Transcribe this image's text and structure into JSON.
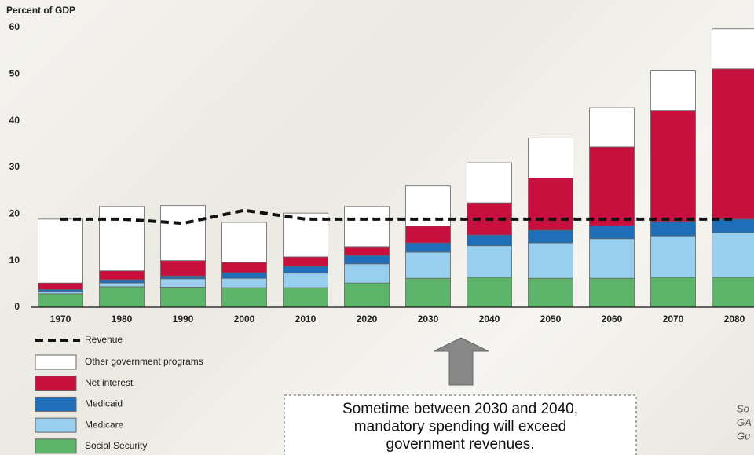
{
  "chart_data": {
    "type": "bar",
    "stacked": true,
    "y_label": "Percent of GDP",
    "categories": [
      "1970",
      "1980",
      "1990",
      "2000",
      "2010",
      "2020",
      "2030",
      "2040",
      "2050",
      "2060",
      "2070",
      "2080"
    ],
    "series": [
      {
        "name": "Social Security",
        "color": "#5cb56a",
        "values": [
          2.9,
          4.4,
          4.3,
          4.2,
          4.2,
          5.2,
          6.2,
          6.4,
          6.2,
          6.2,
          6.4,
          6.4
        ]
      },
      {
        "name": "Medicare",
        "color": "#99cfee",
        "values": [
          0.5,
          0.8,
          1.8,
          2.0,
          3.1,
          4.1,
          5.6,
          6.8,
          7.6,
          8.5,
          8.9,
          9.6
        ]
      },
      {
        "name": "Medicaid",
        "color": "#1f6fb8",
        "values": [
          0.4,
          0.7,
          0.6,
          1.2,
          1.5,
          1.8,
          2.0,
          2.3,
          2.7,
          2.8,
          3.1,
          2.9
        ]
      },
      {
        "name": "Net interest",
        "color": "#c8103e",
        "values": [
          1.4,
          1.9,
          3.3,
          2.2,
          2.0,
          1.9,
          3.6,
          6.9,
          11.2,
          16.9,
          23.8,
          32.2
        ]
      },
      {
        "name": "Other government programs",
        "color": "#ffffff",
        "values": [
          13.7,
          13.8,
          11.8,
          8.6,
          9.4,
          8.6,
          8.6,
          8.6,
          8.6,
          8.4,
          8.6,
          8.6
        ]
      }
    ],
    "revenue": {
      "name": "Revenue",
      "color": "#111111",
      "values": [
        18.9,
        18.9,
        18.0,
        20.8,
        18.9,
        18.9,
        18.9,
        18.9,
        18.9,
        18.9,
        18.9,
        18.9
      ]
    },
    "ylim": [
      0,
      60
    ],
    "yticks": [
      0,
      10,
      20,
      30,
      40,
      50,
      60
    ],
    "callout": [
      "Sometime between 2030 and 2040,",
      "mandatory spending will exceed",
      "government revenues."
    ],
    "source_fragments": [
      "So",
      "GA",
      "Gu"
    ]
  }
}
